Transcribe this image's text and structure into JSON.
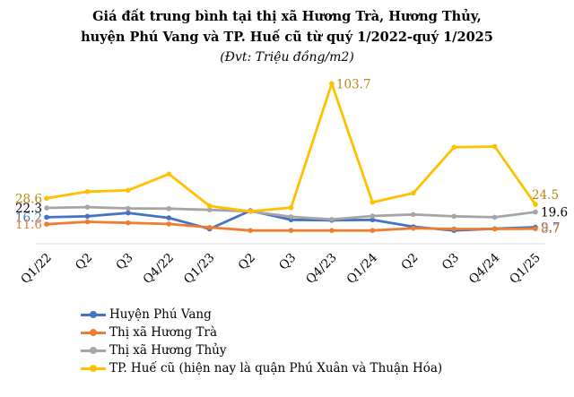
{
  "chart_data": {
    "type": "line",
    "title_line1": "Giá đất trung bình tại thị xã Hương Trà, Hương Thủy,",
    "title_line2": "huyện Phú Vang và TP. Huế cũ từ quý 1/2022-quý 1/2025",
    "subtitle": "(Đvt: Triệu đồng/m2)",
    "categories": [
      "Q1/22",
      "Q2",
      "Q3",
      "Q4/22",
      "Q1/23",
      "Q2",
      "Q3",
      "Q4/23",
      "Q1/24",
      "Q2",
      "Q3",
      "Q4/24",
      "Q1/25"
    ],
    "ylim": [
      0,
      115
    ],
    "grid": false,
    "legend_position": "bottom-left",
    "series": [
      {
        "name": "Huyện Phú Vang",
        "color": "#4472C4",
        "values": [
          16.2,
          16.8,
          19.0,
          15.8,
          8.5,
          20.5,
          14.5,
          14.2,
          14.5,
          10.0,
          7.5,
          8.7,
          9.7
        ],
        "labels": [
          {
            "index": 0,
            "text": "16.2",
            "side": "left",
            "color": "#4472C4"
          },
          {
            "index": 12,
            "text": "9.7",
            "side": "right",
            "color": "#4472C4"
          }
        ]
      },
      {
        "name": "Thị xã Hương Trà",
        "color": "#ED7D31",
        "values": [
          11.6,
          13.2,
          12.5,
          11.8,
          9.5,
          7.5,
          7.5,
          7.5,
          7.5,
          9.0,
          8.5,
          8.5,
          8.7
        ],
        "labels": [
          {
            "index": 0,
            "text": "11.6",
            "side": "left",
            "color": "#ED7D31"
          },
          {
            "index": 12,
            "text": "8.7",
            "side": "right",
            "color": "#ED7D31"
          }
        ]
      },
      {
        "name": "Thị xã Hương Thủy",
        "color": "#A5A5A5",
        "values": [
          22.3,
          22.8,
          22.0,
          21.8,
          21.0,
          20.0,
          16.5,
          14.8,
          17.0,
          18.0,
          16.8,
          16.2,
          19.6
        ],
        "labels": [
          {
            "index": 0,
            "text": "22.3",
            "side": "left",
            "color": "#000000"
          },
          {
            "index": 12,
            "text": "19.6",
            "side": "right",
            "color": "#000000"
          }
        ]
      },
      {
        "name": "TP. Huế cũ (hiện nay là quận Phú Xuân và Thuận Hóa)",
        "color": "#FFC000",
        "values": [
          28.6,
          33.0,
          33.8,
          44.5,
          23.5,
          20.0,
          22.5,
          103.7,
          26.0,
          32.0,
          62.0,
          62.5,
          24.5
        ],
        "labels": [
          {
            "index": 0,
            "text": "28.6",
            "side": "left",
            "color": "#B8860B"
          },
          {
            "index": 7,
            "text": "103.7",
            "side": "right-top",
            "color": "#B8860B"
          },
          {
            "index": 12,
            "text": "24.5",
            "side": "top",
            "color": "#B8860B"
          }
        ]
      }
    ]
  }
}
